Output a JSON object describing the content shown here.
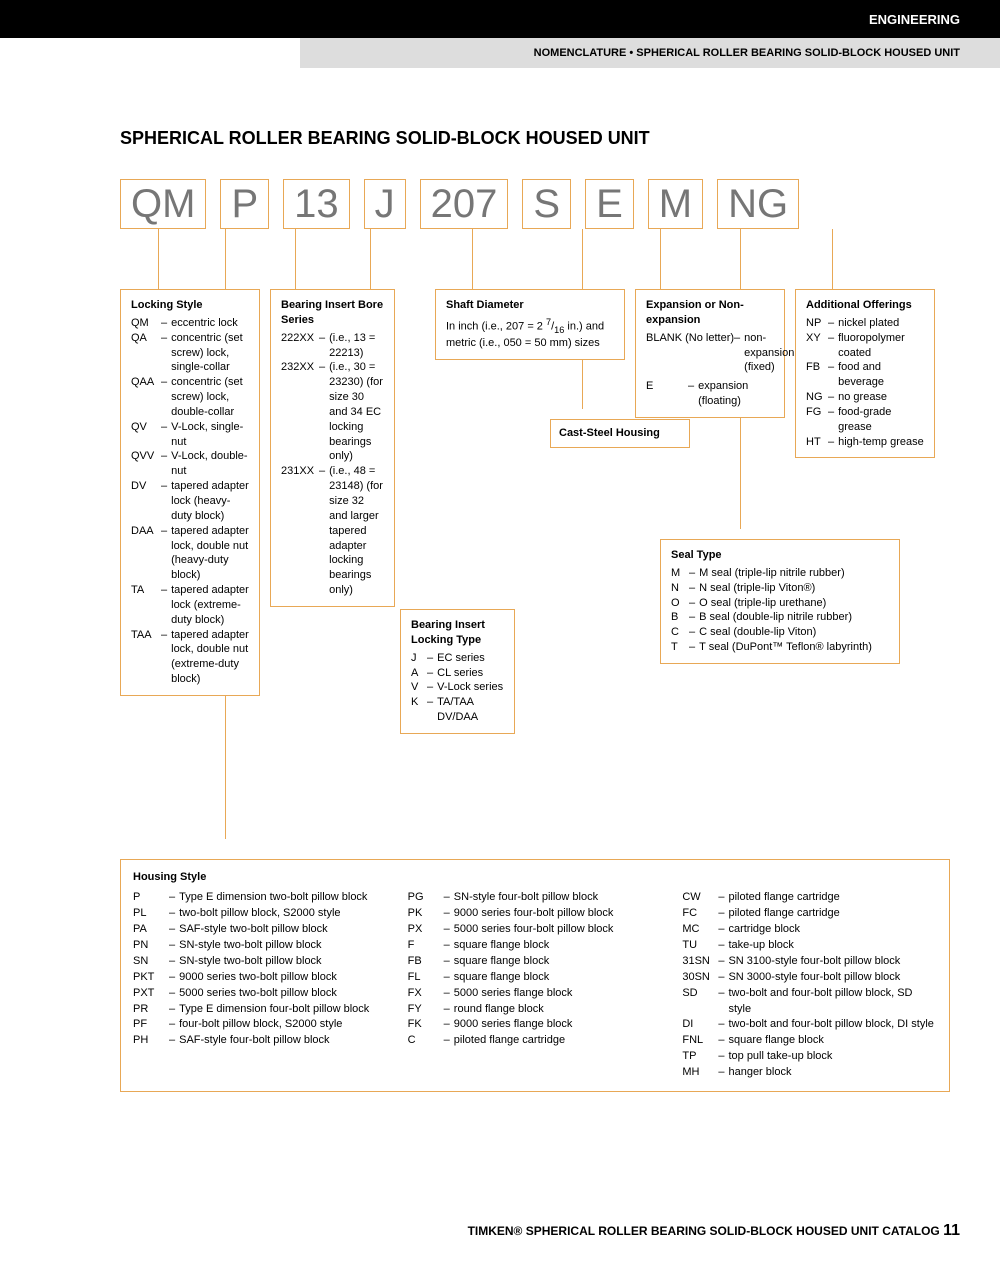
{
  "header": {
    "category": "ENGINEERING",
    "breadcrumb": "NOMENCLATURE • SPHERICAL ROLLER BEARING SOLID-BLOCK HOUSED UNIT"
  },
  "title": "SPHERICAL ROLLER BEARING SOLID-BLOCK HOUSED UNIT",
  "codes": [
    "QM",
    "P",
    "13",
    "J",
    "207",
    "S",
    "E",
    "M",
    "NG"
  ],
  "legends": {
    "locking_style": {
      "title": "Locking Style",
      "items": [
        {
          "code": "QM",
          "desc": "eccentric lock"
        },
        {
          "code": "QA",
          "desc": "concentric (set screw) lock, single-collar"
        },
        {
          "code": "QAA",
          "desc": "concentric (set screw) lock, double-collar"
        },
        {
          "code": "QV",
          "desc": "V-Lock, single-nut"
        },
        {
          "code": "QVV",
          "desc": "V-Lock, double-nut"
        },
        {
          "code": "DV",
          "desc": "tapered adapter lock (heavy-duty block)"
        },
        {
          "code": "DAA",
          "desc": "tapered adapter lock, double nut (heavy-duty block)"
        },
        {
          "code": "TA",
          "desc": "tapered adapter lock (extreme-duty block)"
        },
        {
          "code": "TAA",
          "desc": "tapered adapter lock, double nut (extreme-duty block)"
        }
      ]
    },
    "bore_series": {
      "title": "Bearing Insert Bore Series",
      "items": [
        {
          "code": "222XX",
          "desc": "(i.e., 13 = 22213)"
        },
        {
          "code": "232XX",
          "desc": "(i.e., 30 = 23230) (for size 30 and 34 EC locking bearings only)"
        },
        {
          "code": "231XX",
          "desc": "(i.e., 48 = 23148) (for size 32 and larger tapered adapter locking bearings only)"
        }
      ]
    },
    "locking_type": {
      "title": "Bearing Insert Locking Type",
      "items": [
        {
          "code": "J",
          "desc": "EC series"
        },
        {
          "code": "A",
          "desc": "CL series"
        },
        {
          "code": "V",
          "desc": "V-Lock series"
        },
        {
          "code": "K",
          "desc": "TA/TAA DV/DAA"
        }
      ]
    },
    "shaft_diameter": {
      "title": "Shaft Diameter",
      "items": [],
      "text": "In inch (i.e., 207 = 2 7/16 in.) and metric (i.e., 050 = 50 mm) sizes"
    },
    "cast_steel": {
      "title": "Cast-Steel Housing"
    },
    "expansion": {
      "title": "Expansion or Non-expansion",
      "items": [
        {
          "code": "BLANK (No letter)",
          "desc": "non-expansion (fixed)"
        },
        {
          "code": "E",
          "desc": "expansion (floating)"
        }
      ]
    },
    "seal_type": {
      "title": "Seal Type",
      "items": [
        {
          "code": "M",
          "desc": "M seal (triple-lip nitrile rubber)"
        },
        {
          "code": "N",
          "desc": "N seal (triple-lip Viton®)"
        },
        {
          "code": "O",
          "desc": "O seal (triple-lip urethane)"
        },
        {
          "code": "B",
          "desc": "B seal (double-lip nitrile rubber)"
        },
        {
          "code": "C",
          "desc": "C seal (double-lip Viton)"
        },
        {
          "code": "T",
          "desc": "T seal (DuPont™ Teflon® labyrinth)"
        }
      ]
    },
    "additional": {
      "title": "Additional Offerings",
      "items": [
        {
          "code": "NP",
          "desc": "nickel plated"
        },
        {
          "code": "XY",
          "desc": "fluoropolymer coated"
        },
        {
          "code": "FB",
          "desc": "food and beverage"
        },
        {
          "code": "NG",
          "desc": "no grease"
        },
        {
          "code": "FG",
          "desc": "food-grade grease"
        },
        {
          "code": "HT",
          "desc": "high-temp grease"
        }
      ]
    },
    "housing_style": {
      "title": "Housing Style",
      "col1": [
        {
          "code": "P",
          "desc": "Type E dimension two-bolt pillow block"
        },
        {
          "code": "PL",
          "desc": "two-bolt pillow block, S2000 style"
        },
        {
          "code": "PA",
          "desc": "SAF-style two-bolt pillow block"
        },
        {
          "code": "PN",
          "desc": "SN-style two-bolt pillow block"
        },
        {
          "code": "SN",
          "desc": "SN-style two-bolt pillow block"
        },
        {
          "code": "PKT",
          "desc": "9000 series two-bolt pillow block"
        },
        {
          "code": "PXT",
          "desc": "5000 series two-bolt pillow block"
        },
        {
          "code": "PR",
          "desc": "Type E dimension four-bolt pillow block"
        },
        {
          "code": "PF",
          "desc": "four-bolt pillow block, S2000 style"
        },
        {
          "code": "PH",
          "desc": "SAF-style four-bolt pillow block"
        }
      ],
      "col2": [
        {
          "code": "PG",
          "desc": "SN-style four-bolt pillow block"
        },
        {
          "code": "PK",
          "desc": "9000 series four-bolt pillow block"
        },
        {
          "code": "PX",
          "desc": "5000 series four-bolt pillow block"
        },
        {
          "code": "F",
          "desc": "square flange block"
        },
        {
          "code": "FB",
          "desc": "square flange block"
        },
        {
          "code": "FL",
          "desc": "square flange block"
        },
        {
          "code": "FX",
          "desc": "5000 series flange block"
        },
        {
          "code": "FY",
          "desc": "round flange block"
        },
        {
          "code": "FK",
          "desc": "9000 series flange block"
        },
        {
          "code": "C",
          "desc": "piloted flange cartridge"
        }
      ],
      "col3": [
        {
          "code": "CW",
          "desc": "piloted flange cartridge"
        },
        {
          "code": "FC",
          "desc": "piloted flange cartridge"
        },
        {
          "code": "MC",
          "desc": "cartridge block"
        },
        {
          "code": "TU",
          "desc": "take-up block"
        },
        {
          "code": "31SN",
          "desc": "SN 3100-style four-bolt pillow block"
        },
        {
          "code": "30SN",
          "desc": "SN 3000-style four-bolt pillow block"
        },
        {
          "code": "SD",
          "desc": "two-bolt and four-bolt pillow block, SD style"
        },
        {
          "code": "DI",
          "desc": "two-bolt and four-bolt pillow block, DI style"
        },
        {
          "code": "FNL",
          "desc": "square flange block"
        },
        {
          "code": "TP",
          "desc": "top pull take-up block"
        },
        {
          "code": "MH",
          "desc": "hanger block"
        }
      ]
    }
  },
  "footer": {
    "text": "TIMKEN® SPHERICAL ROLLER BEARING SOLID-BLOCK HOUSED UNIT CATALOG",
    "page": "11"
  }
}
